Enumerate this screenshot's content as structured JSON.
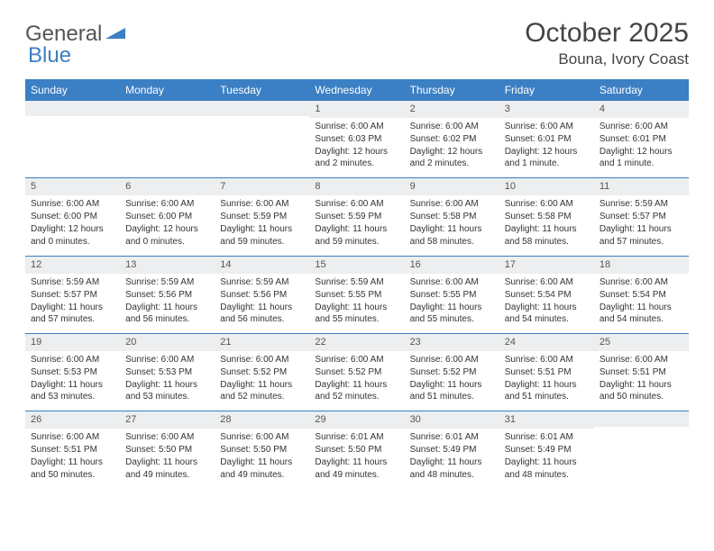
{
  "logo": {
    "part1": "General",
    "part2": "Blue"
  },
  "title": "October 2025",
  "location": "Bouna, Ivory Coast",
  "colors": {
    "header_bg": "#3b7fc4",
    "daynum_bg": "#eceeef",
    "border": "#3b7fc4",
    "text": "#333333",
    "logo_gray": "#555555",
    "logo_blue": "#3b7fc4"
  },
  "weekdays": [
    "Sunday",
    "Monday",
    "Tuesday",
    "Wednesday",
    "Thursday",
    "Friday",
    "Saturday"
  ],
  "weeks": [
    [
      {
        "n": "",
        "sr": "",
        "ss": "",
        "dl": ""
      },
      {
        "n": "",
        "sr": "",
        "ss": "",
        "dl": ""
      },
      {
        "n": "",
        "sr": "",
        "ss": "",
        "dl": ""
      },
      {
        "n": "1",
        "sr": "Sunrise: 6:00 AM",
        "ss": "Sunset: 6:03 PM",
        "dl": "Daylight: 12 hours and 2 minutes."
      },
      {
        "n": "2",
        "sr": "Sunrise: 6:00 AM",
        "ss": "Sunset: 6:02 PM",
        "dl": "Daylight: 12 hours and 2 minutes."
      },
      {
        "n": "3",
        "sr": "Sunrise: 6:00 AM",
        "ss": "Sunset: 6:01 PM",
        "dl": "Daylight: 12 hours and 1 minute."
      },
      {
        "n": "4",
        "sr": "Sunrise: 6:00 AM",
        "ss": "Sunset: 6:01 PM",
        "dl": "Daylight: 12 hours and 1 minute."
      }
    ],
    [
      {
        "n": "5",
        "sr": "Sunrise: 6:00 AM",
        "ss": "Sunset: 6:00 PM",
        "dl": "Daylight: 12 hours and 0 minutes."
      },
      {
        "n": "6",
        "sr": "Sunrise: 6:00 AM",
        "ss": "Sunset: 6:00 PM",
        "dl": "Daylight: 12 hours and 0 minutes."
      },
      {
        "n": "7",
        "sr": "Sunrise: 6:00 AM",
        "ss": "Sunset: 5:59 PM",
        "dl": "Daylight: 11 hours and 59 minutes."
      },
      {
        "n": "8",
        "sr": "Sunrise: 6:00 AM",
        "ss": "Sunset: 5:59 PM",
        "dl": "Daylight: 11 hours and 59 minutes."
      },
      {
        "n": "9",
        "sr": "Sunrise: 6:00 AM",
        "ss": "Sunset: 5:58 PM",
        "dl": "Daylight: 11 hours and 58 minutes."
      },
      {
        "n": "10",
        "sr": "Sunrise: 6:00 AM",
        "ss": "Sunset: 5:58 PM",
        "dl": "Daylight: 11 hours and 58 minutes."
      },
      {
        "n": "11",
        "sr": "Sunrise: 5:59 AM",
        "ss": "Sunset: 5:57 PM",
        "dl": "Daylight: 11 hours and 57 minutes."
      }
    ],
    [
      {
        "n": "12",
        "sr": "Sunrise: 5:59 AM",
        "ss": "Sunset: 5:57 PM",
        "dl": "Daylight: 11 hours and 57 minutes."
      },
      {
        "n": "13",
        "sr": "Sunrise: 5:59 AM",
        "ss": "Sunset: 5:56 PM",
        "dl": "Daylight: 11 hours and 56 minutes."
      },
      {
        "n": "14",
        "sr": "Sunrise: 5:59 AM",
        "ss": "Sunset: 5:56 PM",
        "dl": "Daylight: 11 hours and 56 minutes."
      },
      {
        "n": "15",
        "sr": "Sunrise: 5:59 AM",
        "ss": "Sunset: 5:55 PM",
        "dl": "Daylight: 11 hours and 55 minutes."
      },
      {
        "n": "16",
        "sr": "Sunrise: 6:00 AM",
        "ss": "Sunset: 5:55 PM",
        "dl": "Daylight: 11 hours and 55 minutes."
      },
      {
        "n": "17",
        "sr": "Sunrise: 6:00 AM",
        "ss": "Sunset: 5:54 PM",
        "dl": "Daylight: 11 hours and 54 minutes."
      },
      {
        "n": "18",
        "sr": "Sunrise: 6:00 AM",
        "ss": "Sunset: 5:54 PM",
        "dl": "Daylight: 11 hours and 54 minutes."
      }
    ],
    [
      {
        "n": "19",
        "sr": "Sunrise: 6:00 AM",
        "ss": "Sunset: 5:53 PM",
        "dl": "Daylight: 11 hours and 53 minutes."
      },
      {
        "n": "20",
        "sr": "Sunrise: 6:00 AM",
        "ss": "Sunset: 5:53 PM",
        "dl": "Daylight: 11 hours and 53 minutes."
      },
      {
        "n": "21",
        "sr": "Sunrise: 6:00 AM",
        "ss": "Sunset: 5:52 PM",
        "dl": "Daylight: 11 hours and 52 minutes."
      },
      {
        "n": "22",
        "sr": "Sunrise: 6:00 AM",
        "ss": "Sunset: 5:52 PM",
        "dl": "Daylight: 11 hours and 52 minutes."
      },
      {
        "n": "23",
        "sr": "Sunrise: 6:00 AM",
        "ss": "Sunset: 5:52 PM",
        "dl": "Daylight: 11 hours and 51 minutes."
      },
      {
        "n": "24",
        "sr": "Sunrise: 6:00 AM",
        "ss": "Sunset: 5:51 PM",
        "dl": "Daylight: 11 hours and 51 minutes."
      },
      {
        "n": "25",
        "sr": "Sunrise: 6:00 AM",
        "ss": "Sunset: 5:51 PM",
        "dl": "Daylight: 11 hours and 50 minutes."
      }
    ],
    [
      {
        "n": "26",
        "sr": "Sunrise: 6:00 AM",
        "ss": "Sunset: 5:51 PM",
        "dl": "Daylight: 11 hours and 50 minutes."
      },
      {
        "n": "27",
        "sr": "Sunrise: 6:00 AM",
        "ss": "Sunset: 5:50 PM",
        "dl": "Daylight: 11 hours and 49 minutes."
      },
      {
        "n": "28",
        "sr": "Sunrise: 6:00 AM",
        "ss": "Sunset: 5:50 PM",
        "dl": "Daylight: 11 hours and 49 minutes."
      },
      {
        "n": "29",
        "sr": "Sunrise: 6:01 AM",
        "ss": "Sunset: 5:50 PM",
        "dl": "Daylight: 11 hours and 49 minutes."
      },
      {
        "n": "30",
        "sr": "Sunrise: 6:01 AM",
        "ss": "Sunset: 5:49 PM",
        "dl": "Daylight: 11 hours and 48 minutes."
      },
      {
        "n": "31",
        "sr": "Sunrise: 6:01 AM",
        "ss": "Sunset: 5:49 PM",
        "dl": "Daylight: 11 hours and 48 minutes."
      },
      {
        "n": "",
        "sr": "",
        "ss": "",
        "dl": ""
      }
    ]
  ]
}
